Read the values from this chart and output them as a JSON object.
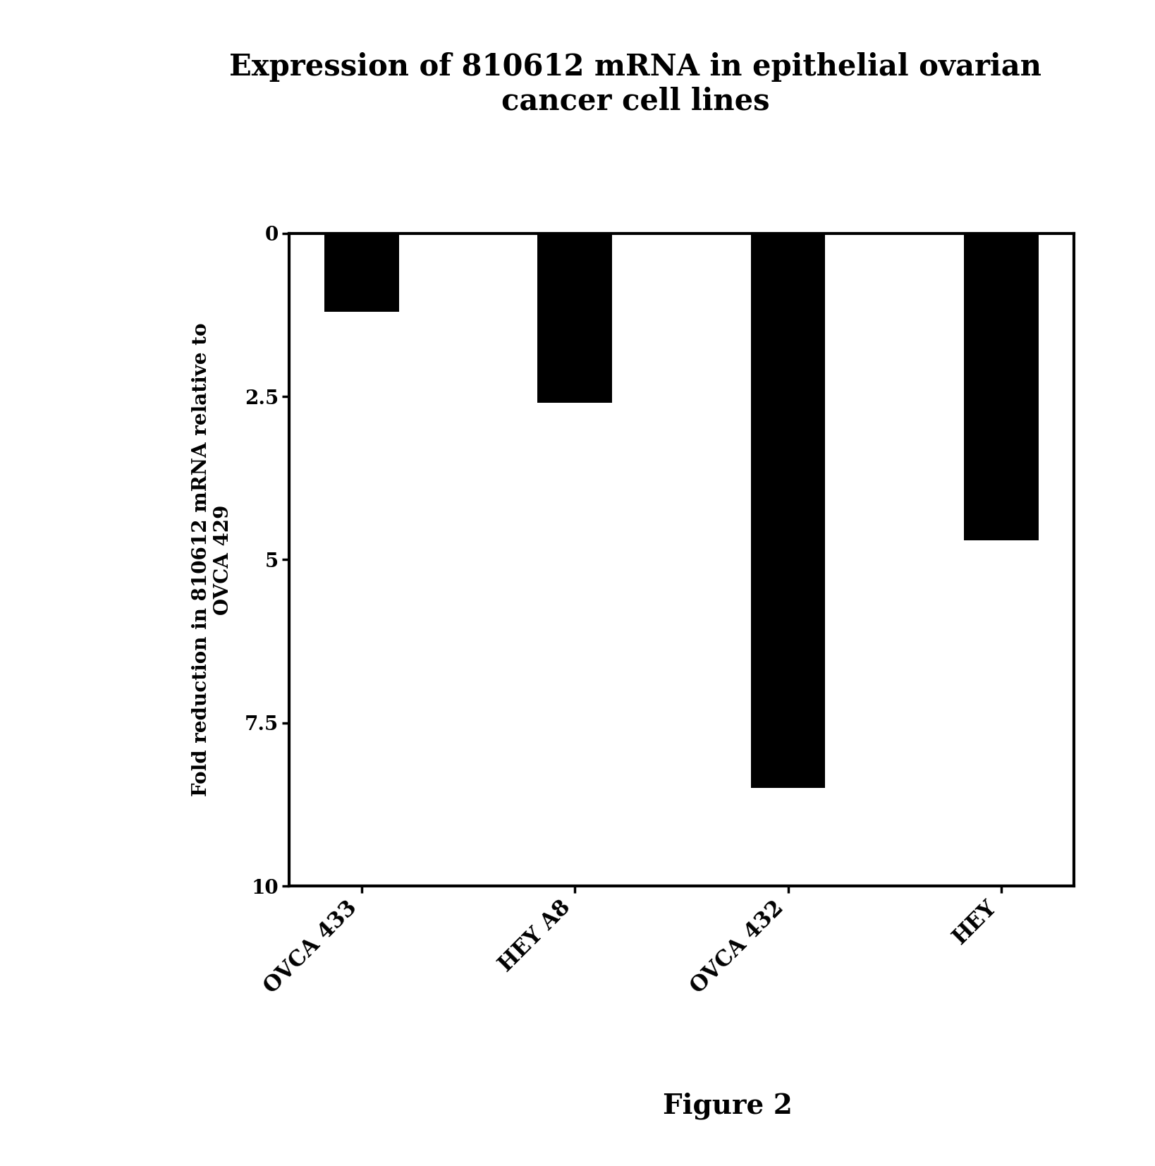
{
  "title_line1": "Expression of 810612 mRNA in epithelial ovarian",
  "title_line2": "cancer cell lines",
  "categories": [
    "OVCA 433",
    "HEY A8",
    "OVCA 432",
    "HEY"
  ],
  "values": [
    1.2,
    2.6,
    8.5,
    4.7
  ],
  "bar_color": "#000000",
  "ylabel_line1": "Fold reduction in 810612 mRNA relative to",
  "ylabel_line2": "OVCA 429",
  "yticks": [
    0,
    2.5,
    5,
    7.5,
    10
  ],
  "ytick_labels": [
    "0",
    "2.5",
    "5",
    "7.5",
    "10"
  ],
  "ymax": 10,
  "figure_label": "Figure 2",
  "background_color": "#ffffff",
  "title_fontsize": 30,
  "ylabel_fontsize": 20,
  "tick_fontsize": 20,
  "xtick_fontsize": 22,
  "bar_width": 0.35,
  "figure_label_fontsize": 28,
  "spine_linewidth": 3.0
}
